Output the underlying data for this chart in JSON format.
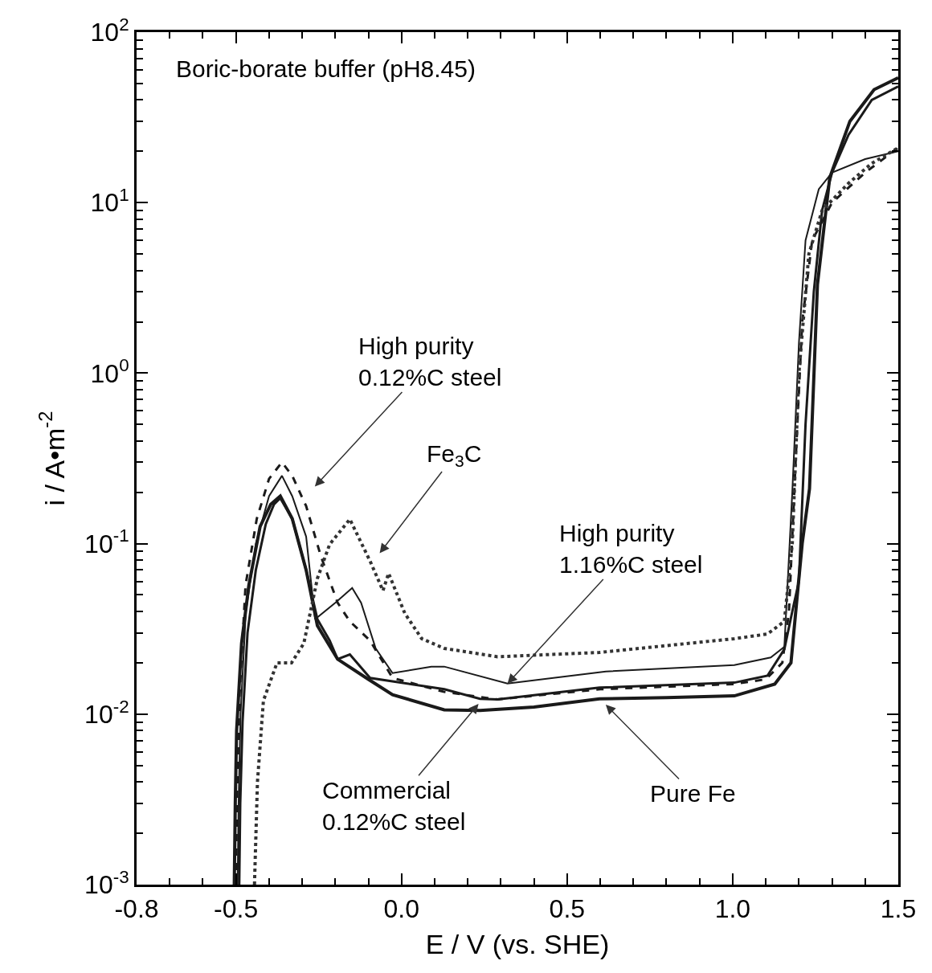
{
  "chart_data": {
    "type": "line",
    "xlabel": "E / V (vs. SHE)",
    "ylabel": "i / A•m$^{-2}$",
    "xlim": [
      -0.8,
      1.5
    ],
    "ylim": [
      0.001,
      100
    ],
    "log": "y",
    "marker": "none",
    "xticks": [
      {
        "value": -0.8,
        "label": "-0.8"
      },
      {
        "value": -0.7,
        "label": null
      },
      {
        "value": -0.6,
        "label": null
      },
      {
        "value": -0.5,
        "label": "-0.5"
      },
      {
        "value": -0.4,
        "label": null
      },
      {
        "value": -0.3,
        "label": null
      },
      {
        "value": -0.2,
        "label": null
      },
      {
        "value": -0.1,
        "label": null
      },
      {
        "value": 0.0,
        "label": "0.0"
      },
      {
        "value": 0.1,
        "label": null
      },
      {
        "value": 0.2,
        "label": null
      },
      {
        "value": 0.3,
        "label": null
      },
      {
        "value": 0.4,
        "label": null
      },
      {
        "value": 0.5,
        "label": "0.5"
      },
      {
        "value": 0.6,
        "label": null
      },
      {
        "value": 0.7,
        "label": null
      },
      {
        "value": 0.8,
        "label": null
      },
      {
        "value": 0.9,
        "label": null
      },
      {
        "value": 1.0,
        "label": "1.0"
      },
      {
        "value": 1.1,
        "label": null
      },
      {
        "value": 1.2,
        "label": null
      },
      {
        "value": 1.3,
        "label": null
      },
      {
        "value": 1.4,
        "label": null
      },
      {
        "value": 1.5,
        "label": "1.5"
      }
    ],
    "yticks": [
      {
        "value": 0.001,
        "label": "10$^{-3}$"
      },
      {
        "value": 0.01,
        "label": "10$^{-2}$"
      },
      {
        "value": 0.1,
        "label": "10$^{-1}$"
      },
      {
        "value": 1,
        "label": "10$^{0}$"
      },
      {
        "value": 10,
        "label": "10$^{1}$"
      },
      {
        "value": 100,
        "label": "10$^{2}$"
      }
    ],
    "series": [
      {
        "color": "#1a1a1a",
        "line_style": "solid",
        "x": [
          -0.505,
          -0.502,
          -0.498,
          -0.483,
          -0.461,
          -0.427,
          -0.395,
          -0.366,
          -0.33,
          -0.288,
          -0.254,
          -0.193,
          -0.1,
          -0.027,
          0.129,
          0.237,
          0.4,
          0.598,
          0.8,
          1.005,
          1.127,
          1.176,
          1.193,
          1.21,
          1.232,
          1.256,
          1.293,
          1.354,
          1.427,
          1.5
        ],
        "values": [
          0.001,
          0.003,
          0.008,
          0.026,
          0.057,
          0.126,
          0.17,
          0.19,
          0.14,
          0.07,
          0.033,
          0.021,
          0.016,
          0.013,
          0.0106,
          0.0105,
          0.011,
          0.0123,
          0.0125,
          0.0128,
          0.015,
          0.02,
          0.045,
          0.1,
          0.21,
          3.3,
          14,
          30,
          46,
          54
        ]
      },
      {
        "color": "#1a1a1a",
        "line_style": "solid",
        "x": [
          -0.49,
          -0.487,
          -0.48,
          -0.465,
          -0.44,
          -0.41,
          -0.385,
          -0.366,
          -0.33,
          -0.288,
          -0.254,
          -0.217,
          -0.193,
          -0.156,
          -0.095,
          0.129,
          0.237,
          0.29,
          0.598,
          1.005,
          1.105,
          1.156,
          1.18,
          1.2,
          1.22,
          1.245,
          1.27,
          1.3,
          1.35,
          1.42,
          1.5
        ],
        "values": [
          0.001,
          0.003,
          0.009,
          0.03,
          0.07,
          0.13,
          0.17,
          0.185,
          0.14,
          0.07,
          0.036,
          0.027,
          0.021,
          0.0224,
          0.0163,
          0.014,
          0.0123,
          0.0122,
          0.0143,
          0.0153,
          0.0168,
          0.024,
          0.04,
          0.06,
          0.5,
          3,
          9,
          15,
          25,
          40,
          48
        ]
      },
      {
        "color": "#1a1a1a",
        "line_style": "dashed",
        "x": [
          -0.5,
          -0.497,
          -0.49,
          -0.471,
          -0.437,
          -0.4,
          -0.361,
          -0.33,
          -0.288,
          -0.244,
          -0.193,
          -0.156,
          -0.095,
          -0.027,
          0.129,
          0.29,
          0.6,
          1.0,
          1.1,
          1.15,
          1.17,
          1.19,
          1.21,
          1.24,
          1.3,
          1.4,
          1.5
        ],
        "values": [
          0.001,
          0.003,
          0.012,
          0.057,
          0.14,
          0.24,
          0.3,
          0.25,
          0.166,
          0.085,
          0.045,
          0.035,
          0.027,
          0.0163,
          0.0135,
          0.0122,
          0.014,
          0.015,
          0.016,
          0.02,
          0.04,
          0.3,
          2,
          6,
          10,
          15,
          21
        ]
      },
      {
        "color": "#1a1a1a",
        "line_style": "solid",
        "x": [
          -0.495,
          -0.492,
          -0.486,
          -0.47,
          -0.44,
          -0.4,
          -0.361,
          -0.33,
          -0.288,
          -0.261,
          -0.2,
          -0.149,
          -0.122,
          -0.078,
          -0.027,
          0.09,
          0.129,
          0.32,
          0.617,
          1.005,
          1.115,
          1.156,
          1.18,
          1.2,
          1.22,
          1.26,
          1.3,
          1.4,
          1.5
        ],
        "values": [
          0.001,
          0.003,
          0.01,
          0.04,
          0.1,
          0.19,
          0.25,
          0.19,
          0.11,
          0.036,
          0.045,
          0.055,
          0.045,
          0.0243,
          0.0174,
          0.019,
          0.019,
          0.0151,
          0.0178,
          0.0194,
          0.0215,
          0.0248,
          0.2,
          1.5,
          6,
          12,
          15,
          18,
          20
        ]
      },
      {
        "color": "#333333",
        "line_style": "dotted",
        "x": [
          -0.444,
          -0.435,
          -0.417,
          -0.376,
          -0.332,
          -0.295,
          -0.254,
          -0.217,
          -0.156,
          -0.095,
          -0.056,
          -0.039,
          0.01,
          0.061,
          0.129,
          0.29,
          0.598,
          1.005,
          1.105,
          1.156,
          1.18,
          1.2,
          1.23,
          1.27,
          1.35,
          1.42,
          1.5
        ],
        "values": [
          0.001,
          0.004,
          0.012,
          0.02,
          0.02,
          0.026,
          0.0625,
          0.099,
          0.139,
          0.079,
          0.053,
          0.067,
          0.039,
          0.0277,
          0.0243,
          0.0217,
          0.023,
          0.0277,
          0.0295,
          0.035,
          0.1,
          1,
          5,
          9,
          13,
          17,
          21
        ]
      }
    ],
    "annotations": [
      "Boric-borate buffer (pH8.45)",
      "High purity\n0.12%C steel",
      "Fe$_{3}$C",
      {
        "text": "High purity\n1.16%C steel",
        "x": 0.32,
        "y": 0.0151
      },
      "Commercial\n0.12%C steel",
      "Pure Fe"
    ]
  }
}
